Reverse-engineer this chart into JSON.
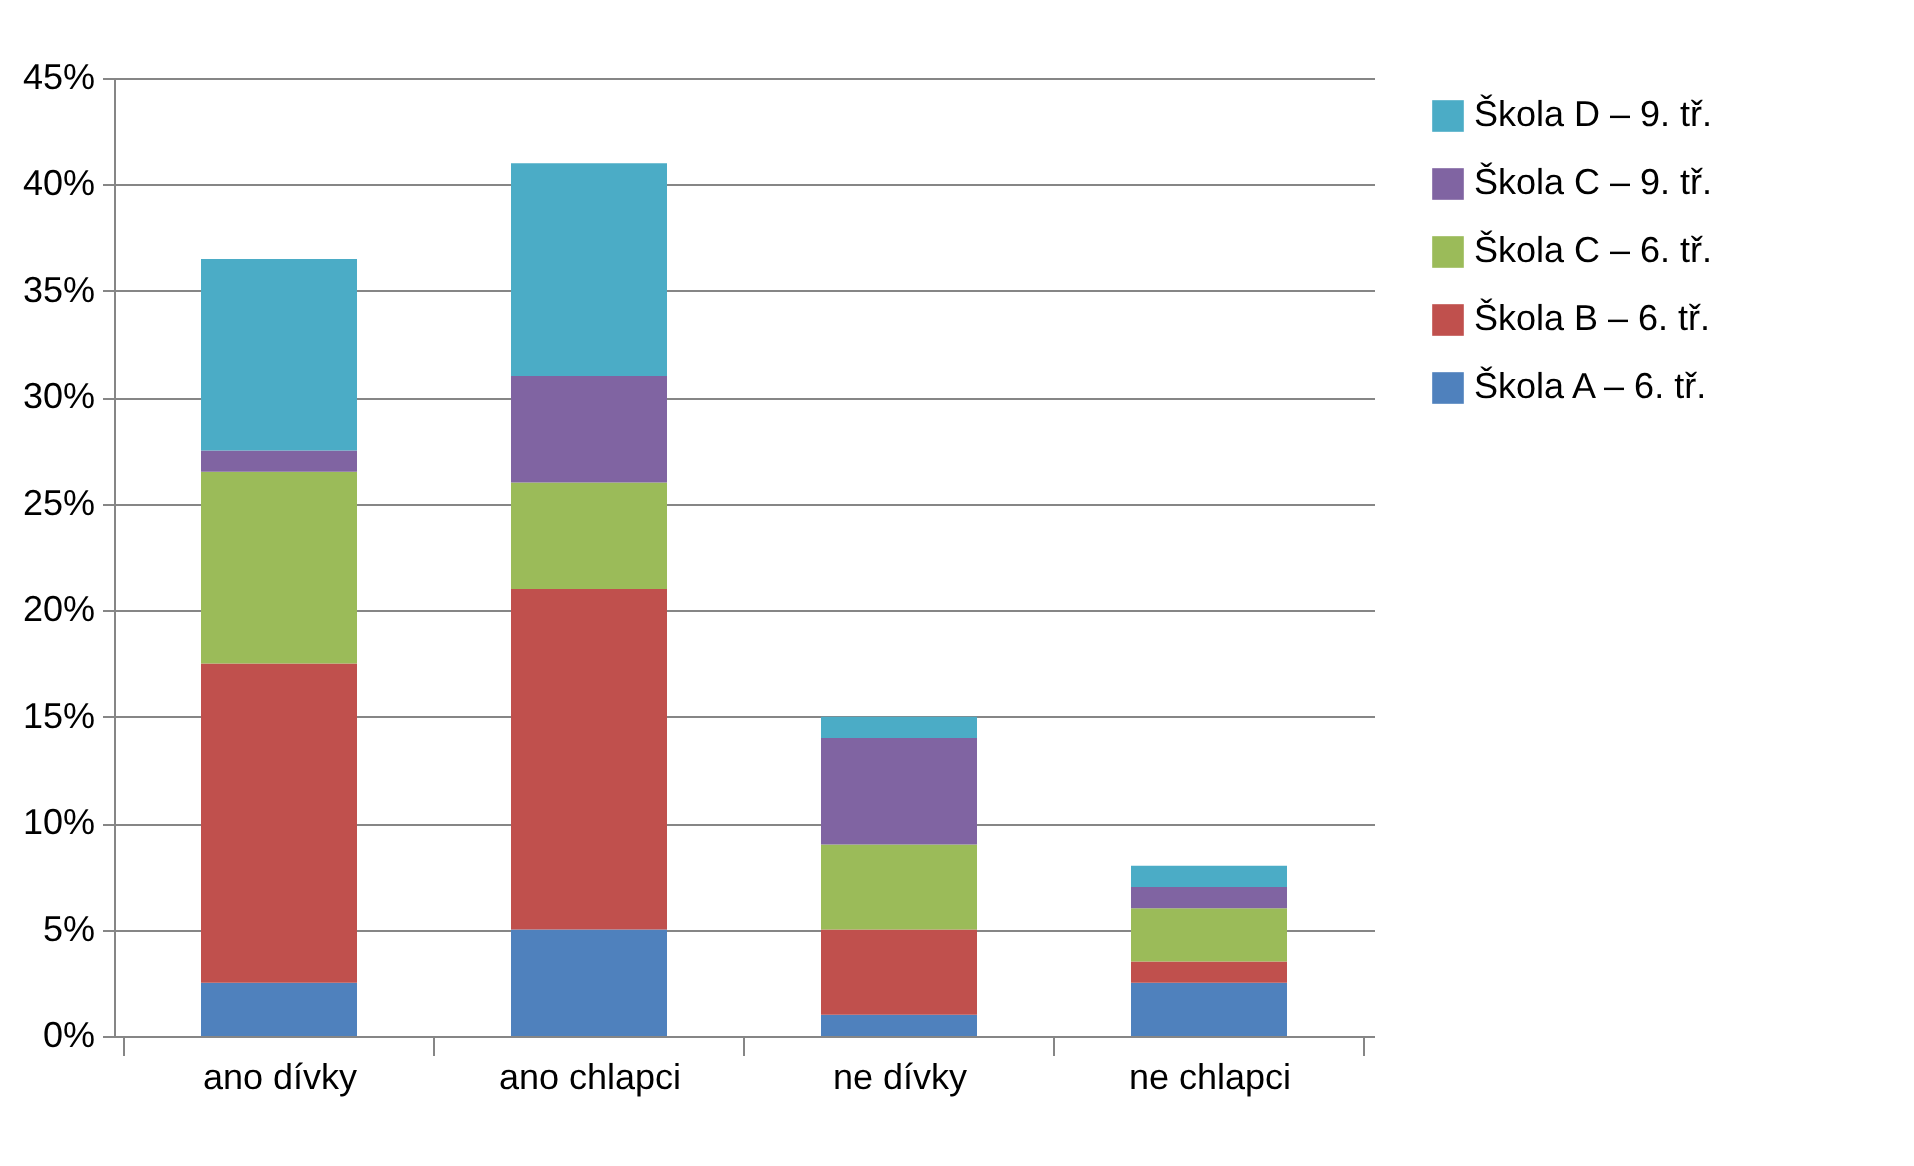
{
  "chart_data": {
    "type": "bar",
    "stacked": true,
    "categories": [
      "ano dívky",
      "ano chlapci",
      "ne dívky",
      "ne chlapci"
    ],
    "series": [
      {
        "name": "Škola A – 6. tř.",
        "color": "#4f81bd",
        "values": [
          2.5,
          5,
          1,
          2.5
        ]
      },
      {
        "name": "Škola B – 6. tř.",
        "color": "#c0504d",
        "values": [
          15,
          16,
          4,
          1
        ]
      },
      {
        "name": "Škola C – 6. tř.",
        "color": "#9bbb59",
        "values": [
          9,
          5,
          4,
          2.5
        ]
      },
      {
        "name": "Škola C – 9. tř.",
        "color": "#8064a2",
        "values": [
          1,
          5,
          5,
          1
        ]
      },
      {
        "name": "Škola D – 9. tř.",
        "color": "#4bacc6",
        "values": [
          9,
          10,
          1,
          1
        ]
      }
    ],
    "ylim": [
      0,
      45
    ],
    "yticks": [
      {
        "value": 0,
        "label": "0%"
      },
      {
        "value": 5,
        "label": "5%"
      },
      {
        "value": 10,
        "label": "10%"
      },
      {
        "value": 15,
        "label": "15%"
      },
      {
        "value": 20,
        "label": "20%"
      },
      {
        "value": 25,
        "label": "25%"
      },
      {
        "value": 30,
        "label": "30%"
      },
      {
        "value": 35,
        "label": "35%"
      },
      {
        "value": 40,
        "label": "40%"
      },
      {
        "value": 45,
        "label": "45%"
      }
    ],
    "grid": "y",
    "legend": "right"
  }
}
